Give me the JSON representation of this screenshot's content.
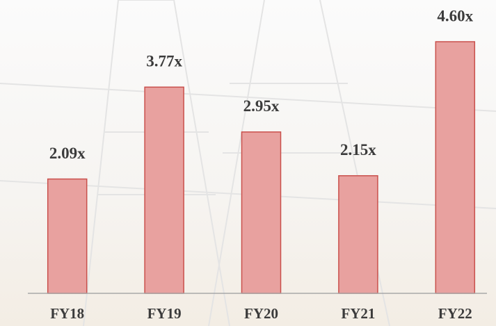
{
  "chart_data": {
    "type": "bar",
    "categories": [
      "FY18",
      "FY19",
      "FY20",
      "FY21",
      "FY22"
    ],
    "values": [
      2.09,
      3.77,
      2.95,
      2.15,
      4.6
    ],
    "value_labels": [
      "2.09x",
      "3.77x",
      "2.95x",
      "2.15x",
      "4.60x"
    ],
    "color": "#e8a19f"
  }
}
